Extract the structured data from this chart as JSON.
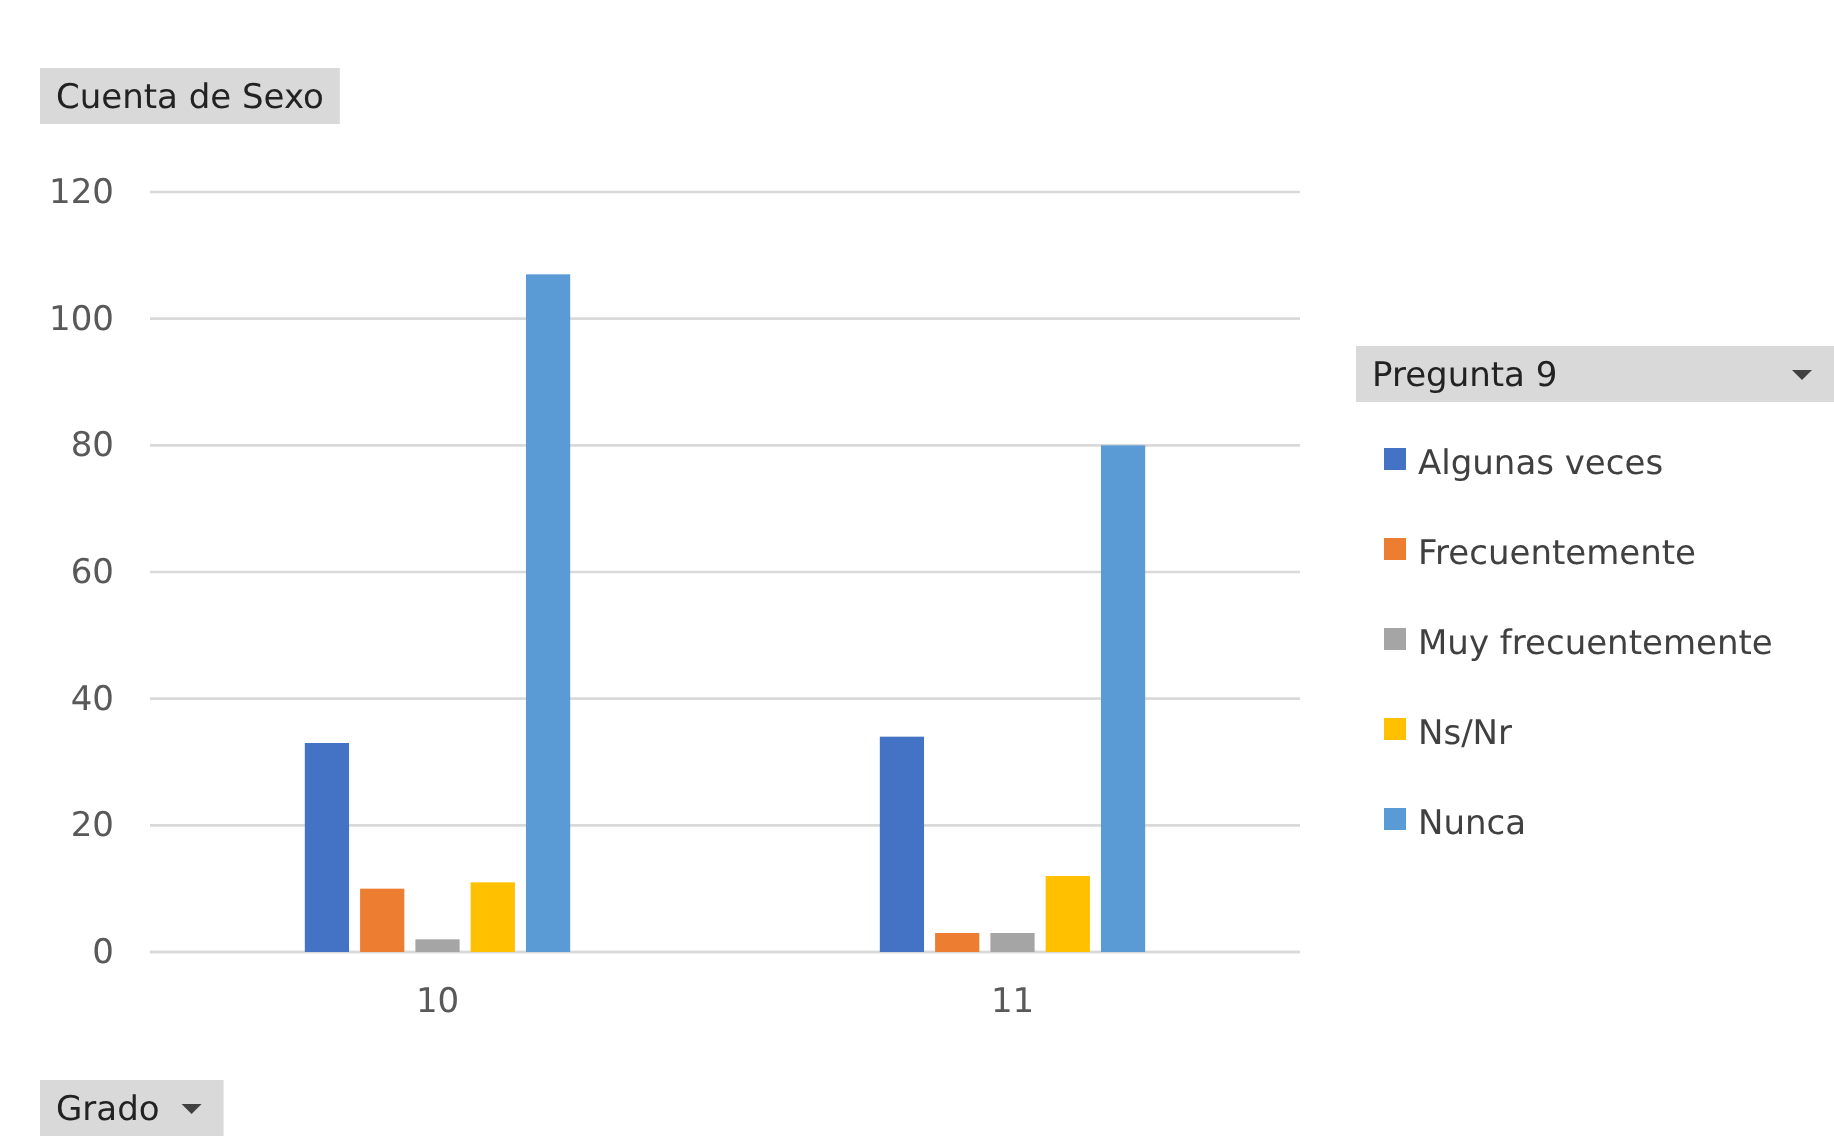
{
  "chart_data": {
    "type": "bar",
    "title": "Cuenta de Sexo",
    "xlabel": "Grado",
    "legend_title": "Pregunta 9",
    "categories": [
      "10",
      "11"
    ],
    "series": [
      {
        "name": "Algunas veces",
        "color": "#4472c4",
        "values": [
          33,
          34
        ]
      },
      {
        "name": "Frecuentemente",
        "color": "#ed7d31",
        "values": [
          10,
          3
        ]
      },
      {
        "name": "Muy frecuentemente",
        "color": "#a5a5a5",
        "values": [
          2,
          3
        ]
      },
      {
        "name": "Ns/Nr",
        "color": "#ffc000",
        "values": [
          11,
          12
        ]
      },
      {
        "name": "Nunca",
        "color": "#5b9bd5",
        "values": [
          107,
          80
        ]
      }
    ],
    "ylim": [
      0,
      120
    ],
    "yticks": [
      0,
      20,
      40,
      60,
      80,
      100,
      120
    ],
    "grid": "y",
    "legend": "right"
  }
}
